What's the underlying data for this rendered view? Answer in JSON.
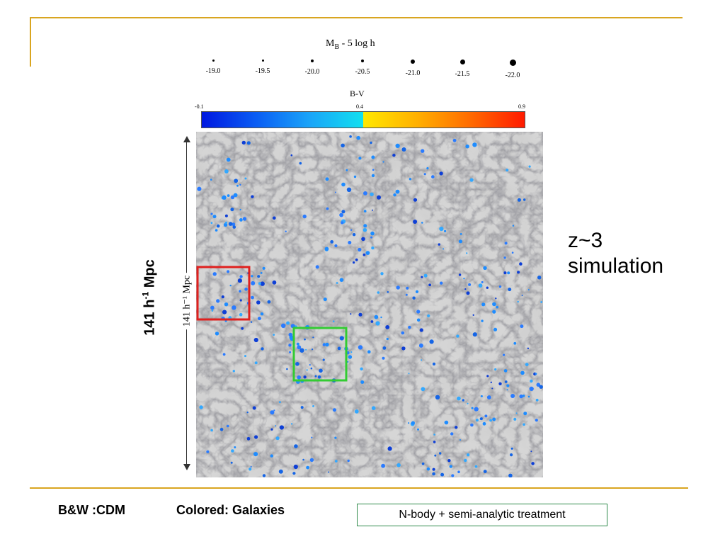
{
  "legend": {
    "magnitude_title": "M",
    "magnitude_sub": "B",
    "magnitude_rest": " - 5 log h",
    "magnitudes": [
      "-19.0",
      "-19.5",
      "-20.0",
      "-20.5",
      "-21.0",
      "-21.5",
      "-22.0"
    ],
    "color_title": "B-V",
    "color_ticks": [
      "-0.1",
      "0.4",
      "0.9"
    ]
  },
  "scale": {
    "inner_text": "141 h⁻¹ Mpc",
    "outer_main": "141 h",
    "outer_sup": "-1",
    "outer_unit": " Mpc"
  },
  "annotation": {
    "line1": "z~3",
    "line2": "simulation"
  },
  "caption": {
    "left": "B&W :CDM",
    "middle": "Colored: Galaxies",
    "boxed": "N-body + semi-analytic treatment"
  },
  "colors": {
    "rule": "#d9a520",
    "red_box": "#e0201e",
    "green_box": "#33cc33",
    "galaxy": "#1e8cff"
  }
}
